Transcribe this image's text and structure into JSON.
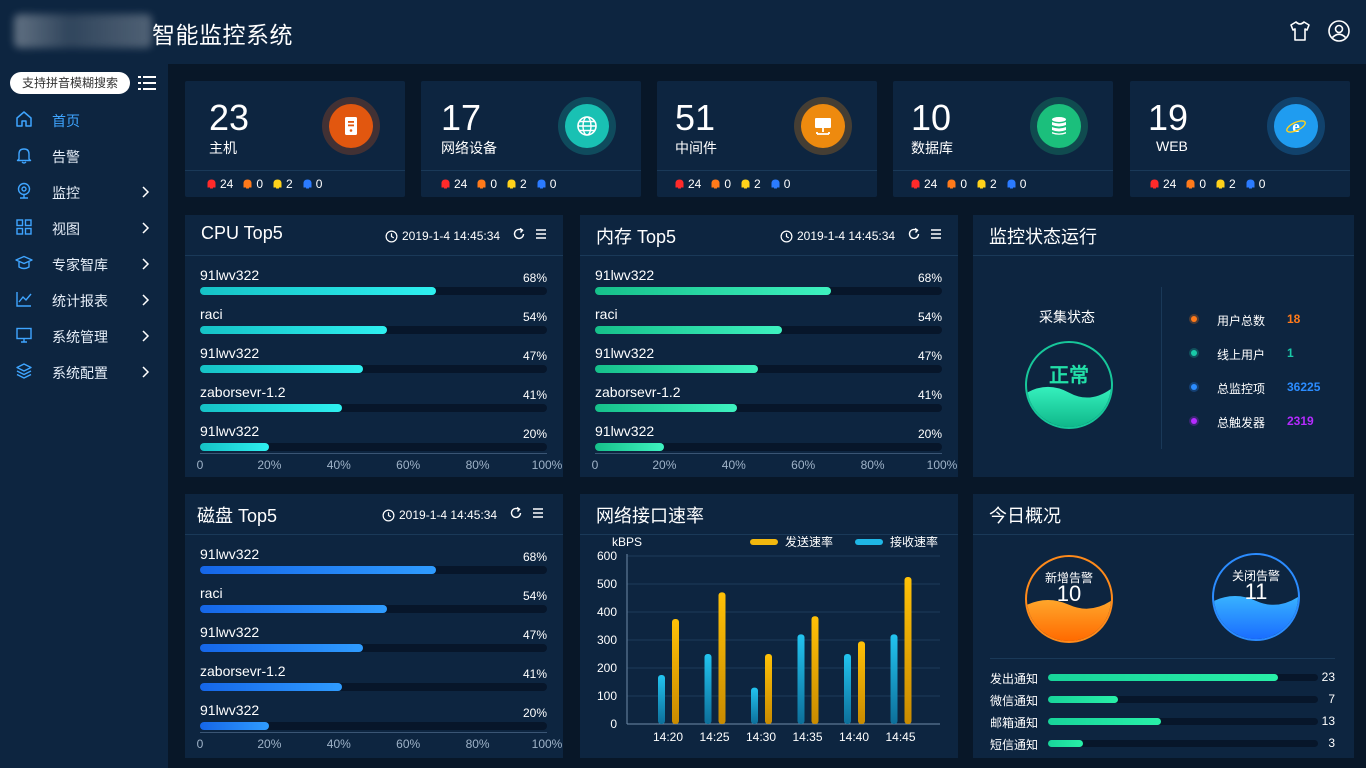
{
  "app": {
    "title": "智能监控系统"
  },
  "sidebar": {
    "search_placeholder": "支持拼音模糊搜索",
    "items": [
      {
        "label": "首页",
        "icon": "home-icon",
        "active": true
      },
      {
        "label": "告警",
        "icon": "bell-icon"
      },
      {
        "label": "监控",
        "icon": "camera-icon"
      },
      {
        "label": "视图",
        "icon": "grid-icon"
      },
      {
        "label": "专家智库",
        "icon": "graduation-cap-icon"
      },
      {
        "label": "统计报表",
        "icon": "line-chart-icon"
      },
      {
        "label": "系统管理",
        "icon": "monitor-icon"
      },
      {
        "label": "系统配置",
        "icon": "layers-icon"
      }
    ]
  },
  "stats": [
    {
      "value": "23",
      "label": "主机",
      "icon": "host-icon",
      "color": "#e2570f",
      "badges": [
        "24",
        "0",
        "2",
        "0"
      ]
    },
    {
      "value": "17",
      "label": "网络设备",
      "icon": "globe-icon",
      "color": "#19c1b3",
      "badges": [
        "24",
        "0",
        "2",
        "0"
      ]
    },
    {
      "value": "51",
      "label": "中间件",
      "icon": "middleware-icon",
      "color": "#ee8a0e",
      "badges": [
        "24",
        "0",
        "2",
        "0"
      ]
    },
    {
      "value": "10",
      "label": "数据库",
      "icon": "database-icon",
      "color": "#1bbf7c",
      "badges": [
        "24",
        "0",
        "2",
        "0"
      ]
    },
    {
      "value": "19",
      "label": "WEB",
      "icon": "ie-icon",
      "color": "#1f9cf0",
      "badges": [
        "24",
        "0",
        "2",
        "0"
      ]
    }
  ],
  "badge_colors": [
    "#ff2a2a",
    "#ff7a1a",
    "#ffd21a",
    "#2b7bff"
  ],
  "cpu": {
    "title": "CPU Top5",
    "time": "2019-1-4 14:45:34",
    "items": [
      {
        "name": "91lwv322",
        "pct": "68%",
        "value": 68
      },
      {
        "name": "raci",
        "pct": "54%",
        "value": 54
      },
      {
        "name": "91lwv322",
        "pct": "47%",
        "value": 47
      },
      {
        "name": "zaborsevr-1.2",
        "pct": "41%",
        "value": 41
      },
      {
        "name": "91lwv322",
        "pct": "20%",
        "value": 20
      }
    ]
  },
  "mem": {
    "title": "内存 Top5",
    "time": "2019-1-4 14:45:34",
    "items": [
      {
        "name": "91lwv322",
        "pct": "68%",
        "value": 68
      },
      {
        "name": "raci",
        "pct": "54%",
        "value": 54
      },
      {
        "name": "91lwv322",
        "pct": "47%",
        "value": 47
      },
      {
        "name": "zaborsevr-1.2",
        "pct": "41%",
        "value": 41
      },
      {
        "name": "91lwv322",
        "pct": "20%",
        "value": 20
      }
    ]
  },
  "disk": {
    "title": "磁盘 Top5",
    "time": "2019-1-4 14:45:34",
    "items": [
      {
        "name": "91lwv322",
        "pct": "68%",
        "value": 68
      },
      {
        "name": "raci",
        "pct": "54%",
        "value": 54
      },
      {
        "name": "91lwv322",
        "pct": "47%",
        "value": 47
      },
      {
        "name": "zaborsevr-1.2",
        "pct": "41%",
        "value": 41
      },
      {
        "name": "91lwv322",
        "pct": "20%",
        "value": 20
      }
    ]
  },
  "axis_ticks": [
    "0",
    "20%",
    "40%",
    "60%",
    "80%",
    "100%"
  ],
  "monitor": {
    "title": "监控状态运行",
    "status_label": "采集状态",
    "status_value": "正常",
    "stats": [
      {
        "label": "用户总数",
        "value": "18",
        "color": "#ff7a1a"
      },
      {
        "label": "线上用户",
        "value": "1",
        "color": "#19c9a8"
      },
      {
        "label": "总监控项",
        "value": "36225",
        "color": "#2b8cff"
      },
      {
        "label": "总触发器",
        "value": "2319",
        "color": "#b52bff"
      }
    ]
  },
  "network": {
    "title": "网络接口速率"
  },
  "chart_data": {
    "type": "bar",
    "title": "",
    "ylabel": "kBPS",
    "xlabel": "",
    "ylim": [
      0,
      600
    ],
    "yticks": [
      "0",
      "100",
      "200",
      "300",
      "400",
      "500",
      "600"
    ],
    "categories": [
      "14:20",
      "14:25",
      "14:30",
      "14:35",
      "14:40",
      "14:45"
    ],
    "series": [
      {
        "name": "发送速率",
        "values": [
          375,
          470,
          250,
          385,
          295,
          525
        ],
        "color": "#f2b80e"
      },
      {
        "name": "接收速率",
        "values": [
          175,
          250,
          130,
          320,
          250,
          320
        ],
        "color": "#1fb7e6"
      }
    ],
    "legend": "top-right",
    "grid": true
  },
  "today": {
    "title": "今日概况",
    "new_alarm_label": "新增告警",
    "new_alarm_value": "10",
    "closed_alarm_label": "关闭告警",
    "closed_alarm_value": "11",
    "notices": [
      {
        "label": "发出通知",
        "value": "23",
        "fraction": 0.85
      },
      {
        "label": "微信通知",
        "value": "7",
        "fraction": 0.26
      },
      {
        "label": "邮箱通知",
        "value": "13",
        "fraction": 0.42
      },
      {
        "label": "短信通知",
        "value": "3",
        "fraction": 0.13
      }
    ]
  }
}
